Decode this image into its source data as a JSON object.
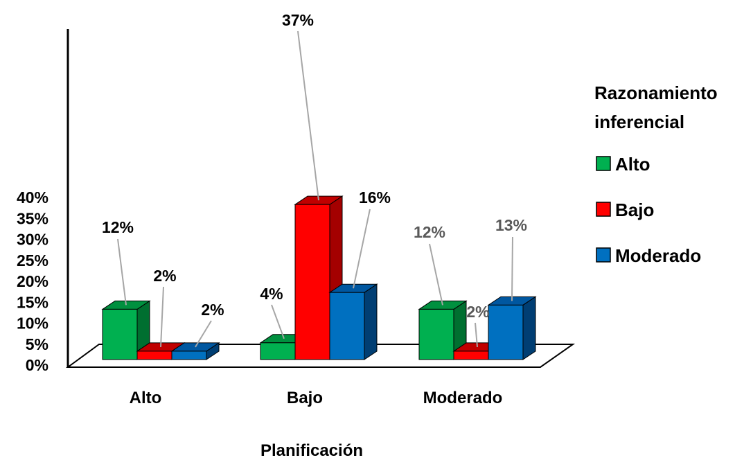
{
  "chart_data": {
    "type": "bar",
    "categories": [
      "Alto",
      "Bajo",
      "Moderado"
    ],
    "series": [
      {
        "name": "Alto",
        "values": [
          12,
          4,
          12
        ],
        "labels": [
          "12%",
          "4%",
          "12%"
        ]
      },
      {
        "name": "Bajo",
        "values": [
          2,
          37,
          2
        ],
        "labels": [
          "2%",
          "37%",
          "2%"
        ]
      },
      {
        "name": "Moderado",
        "values": [
          2,
          16,
          13
        ],
        "labels": [
          "2%",
          "16%",
          "13%"
        ]
      }
    ],
    "ylim": [
      0,
      40
    ],
    "ytick_labels": [
      "0%",
      "5%",
      "10%",
      "15%",
      "20%",
      "25%",
      "30%",
      "35%",
      "40%"
    ],
    "xlabel": "Planificación",
    "ylabel": "",
    "legend_title": "Razonamiento inferencial",
    "legend_placement": "right",
    "grid": false,
    "colors": {
      "Alto": {
        "front": "#00b050",
        "side": "#006f30",
        "top": "#00903f"
      },
      "Bajo": {
        "front": "#ff0000",
        "side": "#a40000",
        "top": "#c00000"
      },
      "Moderado": {
        "front": "#0070c0",
        "side": "#003e73",
        "top": "#0057a0"
      }
    },
    "label_colors": {
      "Alto": [
        "#000000",
        "#000000",
        "#595959"
      ],
      "Bajo": [
        "#000000",
        "#000000",
        "#595959"
      ],
      "Moderado": [
        "#000000",
        "#000000",
        "#595959"
      ]
    }
  }
}
